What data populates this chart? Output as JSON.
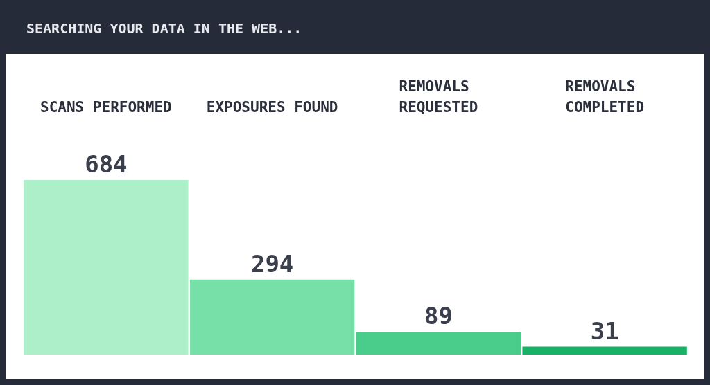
{
  "chart_data": {
    "type": "bar",
    "title": "SEARCHING YOUR DATA IN THE WEB...",
    "categories": [
      "SCANS PERFORMED",
      "EXPOSURES FOUND",
      "REMOVALS REQUESTED",
      "REMOVALS COMPLETED"
    ],
    "values": [
      684,
      294,
      89,
      31
    ],
    "colors": [
      "#adefc8",
      "#77e0a8",
      "#4acc8a",
      "#17b266"
    ],
    "data_labels": true
  }
}
